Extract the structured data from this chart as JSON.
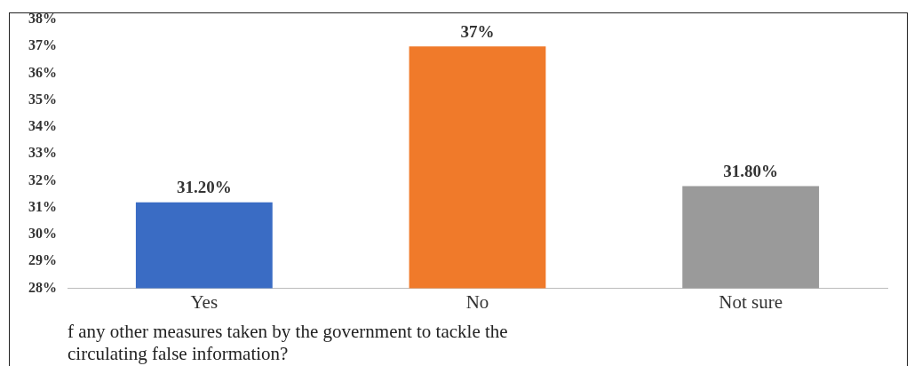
{
  "chart_data": {
    "type": "bar",
    "categories": [
      "Yes",
      "No",
      "Not sure"
    ],
    "values": [
      31.2,
      37,
      31.8
    ],
    "colors": [
      "#3a6cc4",
      "#f07a2a",
      "#9a9a9a"
    ],
    "value_labels": [
      "31.20%",
      "37%",
      "31.80%"
    ],
    "ylim": [
      28,
      38
    ],
    "yticks": [
      {
        "value": 28,
        "label": "28%"
      },
      {
        "value": 29,
        "label": "29%"
      },
      {
        "value": 30,
        "label": "30%"
      },
      {
        "value": 31,
        "label": "31%"
      },
      {
        "value": 32,
        "label": "32%"
      },
      {
        "value": 33,
        "label": "33%"
      },
      {
        "value": 34,
        "label": "34%"
      },
      {
        "value": 35,
        "label": "35%"
      },
      {
        "value": 36,
        "label": "36%"
      },
      {
        "value": 37,
        "label": "37%"
      },
      {
        "value": 38,
        "label": "38%"
      }
    ],
    "xlabel": "f any other measures taken by the government to tackle the\ncirculating false information?",
    "grid": false,
    "legend": false
  }
}
